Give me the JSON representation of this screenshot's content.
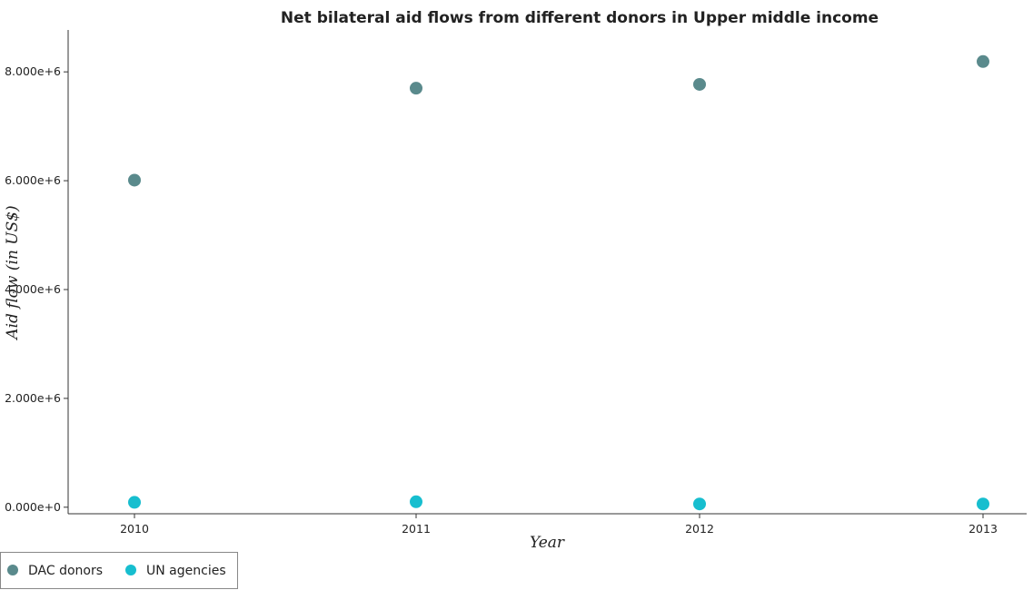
{
  "chart_data": {
    "type": "scatter",
    "title": "Net bilateral aid flows from different donors in Upper middle income",
    "xlabel": "Year",
    "ylabel": "Aid flow (in US$)",
    "categories": [
      "2010",
      "2011",
      "2012",
      "2013"
    ],
    "y_ticks": [
      "0.000e+0",
      "2.000e+6",
      "4.000e+6",
      "6.000e+6",
      "8.000e+6"
    ],
    "y_tick_values": [
      0,
      2000000,
      4000000,
      6000000,
      8000000
    ],
    "ylim": [
      -120000,
      8770000
    ],
    "series": [
      {
        "name": "DAC donors",
        "color": "#5a8a8c",
        "values": [
          6010000,
          7700000,
          7770000,
          8190000
        ]
      },
      {
        "name": "UN agencies",
        "color": "#17becf",
        "values": [
          90000,
          100000,
          60000,
          60000
        ]
      }
    ],
    "legend_position": "bottom-left",
    "grid": false
  }
}
